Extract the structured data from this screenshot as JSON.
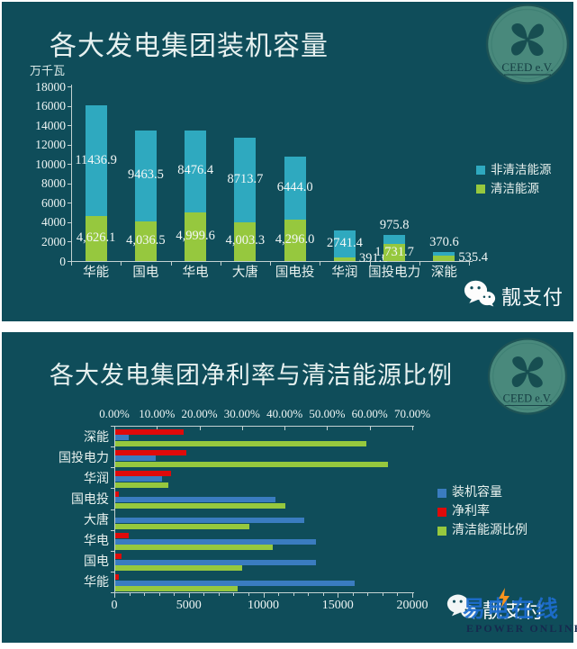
{
  "colors": {
    "panel_bg": "#0f4d5a",
    "teal_bar": "#2fa9bf",
    "green_bar": "#96c83e",
    "blue_bar": "#3a7cc0",
    "red_bar": "#df0a0a",
    "text_light": "#e8f1ee",
    "axis": "#c3d2d2"
  },
  "branding": {
    "logo_text": "CEED e.V.",
    "watermark_top": {
      "icon": "wechat-icon",
      "text": "靓支付"
    },
    "watermark_bottom": {
      "icon": "wechat-icon",
      "text": "靓支付",
      "overlay_text": "易电在线",
      "caption": "EPOWER ONLINE"
    }
  },
  "chart_data": [
    {
      "type": "bar",
      "stacked": true,
      "title": "各大发电集团装机容量",
      "ylabel": "万千瓦",
      "ylim": [
        0,
        18000
      ],
      "ytick_step": 2000,
      "ytick_labels": [
        "0",
        "2000",
        "4000",
        "6000",
        "8000",
        "10000",
        "12000",
        "14000",
        "16000",
        "18000"
      ],
      "grid": false,
      "legend_position": "right",
      "categories": [
        "华能",
        "国电",
        "华电",
        "大唐",
        "国电投",
        "华润",
        "国投电力",
        "深能"
      ],
      "series": [
        {
          "name": "清洁能源",
          "color": "#96c83e",
          "values": [
            4626.1,
            4036.5,
            4999.6,
            4003.3,
            4296.0,
            391.6,
            1731.7,
            535.4
          ],
          "labels": [
            "4,626.1",
            "4,036.5",
            "4,999.6",
            "4,003.3",
            "4,296.0",
            "391.6",
            "1,731.7",
            "535.4"
          ]
        },
        {
          "name": "非清洁能源",
          "color": "#2fa9bf",
          "values": [
            11436.9,
            9463.5,
            8476.4,
            8713.7,
            6444.0,
            2741.4,
            975.8,
            370.6
          ],
          "labels": [
            "11436.9",
            "9463.5",
            "8476.4",
            "8713.7",
            "6444.0",
            "2741.4",
            "975.8",
            "370.6"
          ]
        }
      ],
      "legend": [
        {
          "name": "非清洁能源",
          "color": "#2fa9bf"
        },
        {
          "name": "清洁能源",
          "color": "#96c83e"
        }
      ]
    },
    {
      "type": "bar",
      "orientation": "horizontal",
      "title": "各大发电集团净利率与清洁能源比例",
      "categories": [
        "深能",
        "国投电力",
        "华润",
        "国电投",
        "大唐",
        "华电",
        "国电",
        "华能"
      ],
      "series": [
        {
          "name": "净利率",
          "color": "#df0a0a",
          "axis": "percent",
          "values": [
            16.0,
            16.8,
            13.2,
            0.8,
            0.0,
            3.2,
            1.5,
            0.9
          ]
        },
        {
          "name": "装机容量",
          "color": "#3a7cc0",
          "axis": "value",
          "values": [
            906.0,
            2707.5,
            3133.0,
            10740.0,
            12717.0,
            13476.0,
            13500.0,
            16063.0
          ]
        },
        {
          "name": "清洁能源比例",
          "color": "#96c83e",
          "axis": "percent",
          "values": [
            59.1,
            64.0,
            12.5,
            40.0,
            31.5,
            37.1,
            29.9,
            28.8
          ]
        }
      ],
      "percent_axis": {
        "position": "top",
        "min": 0,
        "max": 70,
        "tick_labels": [
          "0.00%",
          "10.00%",
          "20.00%",
          "30.00%",
          "40.00%",
          "50.00%",
          "60.00%",
          "70.00%"
        ]
      },
      "value_axis": {
        "position": "bottom",
        "min": 0,
        "max": 20000,
        "tick_labels": [
          "0",
          "5000",
          "10000",
          "15000",
          "20000"
        ]
      },
      "legend": [
        {
          "name": "装机容量",
          "color": "#3a7cc0"
        },
        {
          "name": "净利率",
          "color": "#df0a0a"
        },
        {
          "name": "清洁能源比例",
          "color": "#96c83e"
        }
      ],
      "legend_position": "right"
    }
  ]
}
